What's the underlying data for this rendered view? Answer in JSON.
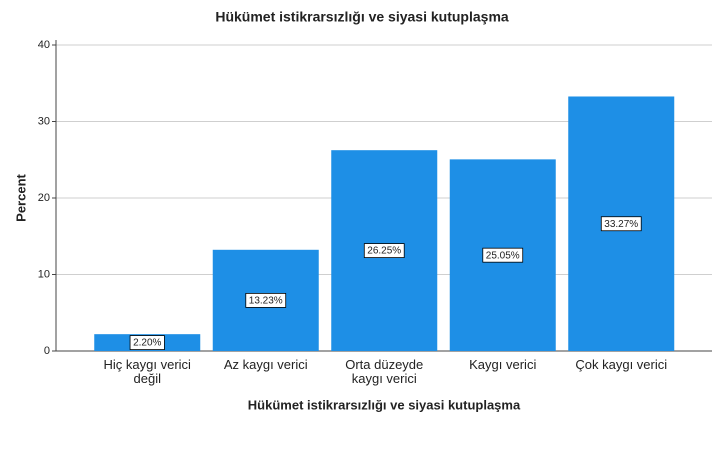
{
  "chart_data": {
    "type": "bar",
    "title": "Hükümet istikrarsızlığı ve siyasi kutuplaşma",
    "x_label": "Hükümet istikrarsızlığı ve siyasi kutuplaşma",
    "y_label": "Percent",
    "categories": [
      "Hiç kaygı verici değil",
      "Az kaygı verici",
      "Orta düzeyde kaygı verici",
      "Kaygı verici",
      "Çok kaygı verici"
    ],
    "values": [
      2.2,
      13.23,
      26.25,
      25.05,
      33.27
    ],
    "value_labels": [
      "2.20%",
      "13.23%",
      "26.25%",
      "25.05%",
      "33.27%"
    ],
    "color": "#1e8fe6",
    "ylim": [
      0,
      40
    ],
    "yticks": [
      0,
      10,
      20,
      30,
      40
    ],
    "grid": true
  }
}
